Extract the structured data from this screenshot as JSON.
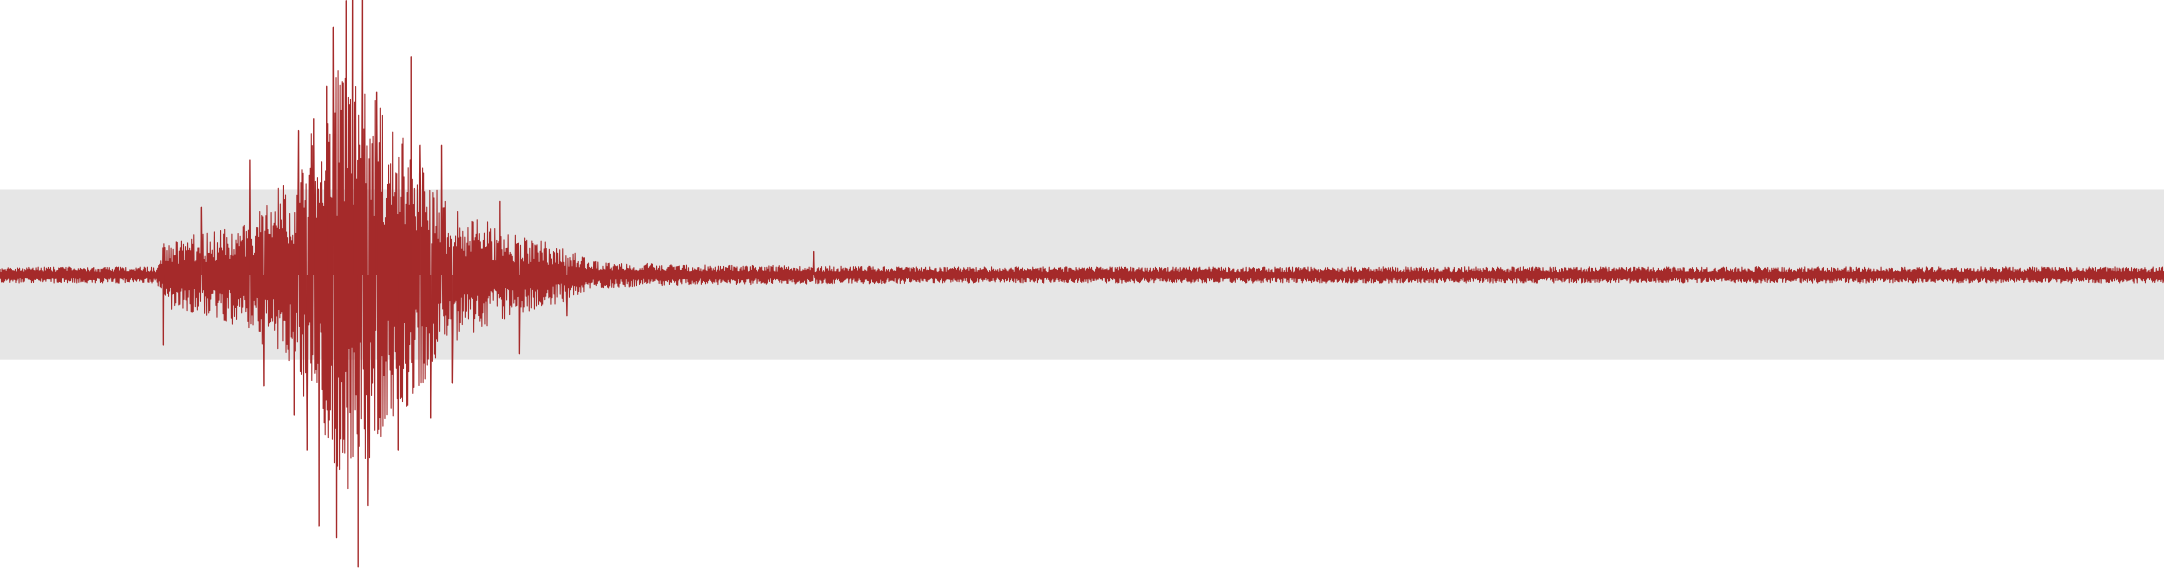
{
  "chart_data": {
    "type": "line",
    "title": "",
    "xlabel": "",
    "ylabel": "",
    "grid": false,
    "legend": "none",
    "xlim": [
      0,
      1000
    ],
    "ylim": [
      -1,
      1
    ],
    "band": {
      "y_from": -0.29,
      "y_to": 0.29,
      "color": "#e6e6e6"
    },
    "series": [
      {
        "color": "#a52a2a",
        "sample_count": 4200,
        "envelope": [
          {
            "x": 0,
            "amplitude": 0.035
          },
          {
            "x": 72,
            "amplitude": 0.035
          },
          {
            "x": 76,
            "amplitude": 0.14
          },
          {
            "x": 110,
            "amplitude": 0.22
          },
          {
            "x": 135,
            "amplitude": 0.42
          },
          {
            "x": 150,
            "amplitude": 0.75
          },
          {
            "x": 163,
            "amplitude": 0.98
          },
          {
            "x": 172,
            "amplitude": 0.78
          },
          {
            "x": 190,
            "amplitude": 0.55
          },
          {
            "x": 205,
            "amplitude": 0.32
          },
          {
            "x": 230,
            "amplitude": 0.2
          },
          {
            "x": 260,
            "amplitude": 0.12
          },
          {
            "x": 275,
            "amplitude": 0.06
          },
          {
            "x": 310,
            "amplitude": 0.045
          },
          {
            "x": 375,
            "amplitude": 0.04
          },
          {
            "x": 450,
            "amplitude": 0.035
          },
          {
            "x": 1000,
            "amplitude": 0.035
          }
        ],
        "spikes": [
          {
            "x": 75.5,
            "y": -0.24
          },
          {
            "x": 93,
            "y": 0.23
          },
          {
            "x": 115.5,
            "y": 0.39
          },
          {
            "x": 122,
            "y": -0.38
          },
          {
            "x": 136,
            "y": -0.48
          },
          {
            "x": 138,
            "y": 0.49
          },
          {
            "x": 142,
            "y": -0.6
          },
          {
            "x": 145,
            "y": 0.53
          },
          {
            "x": 147.5,
            "y": -0.86
          },
          {
            "x": 151,
            "y": 0.64
          },
          {
            "x": 154,
            "y": 0.84
          },
          {
            "x": 155.5,
            "y": -0.9
          },
          {
            "x": 160,
            "y": 0.93
          },
          {
            "x": 163,
            "y": 0.99
          },
          {
            "x": 165.5,
            "y": -1.0
          },
          {
            "x": 167.5,
            "y": 0.95
          },
          {
            "x": 170,
            "y": -0.79
          },
          {
            "x": 174,
            "y": 0.62
          },
          {
            "x": 184,
            "y": -0.6
          },
          {
            "x": 190,
            "y": 0.74
          },
          {
            "x": 194,
            "y": 0.44
          },
          {
            "x": 199,
            "y": -0.49
          },
          {
            "x": 204,
            "y": 0.44
          },
          {
            "x": 209,
            "y": -0.37
          },
          {
            "x": 231,
            "y": 0.25
          },
          {
            "x": 240,
            "y": -0.27
          },
          {
            "x": 262,
            "y": -0.14
          },
          {
            "x": 376,
            "y": 0.08
          }
        ]
      }
    ]
  }
}
